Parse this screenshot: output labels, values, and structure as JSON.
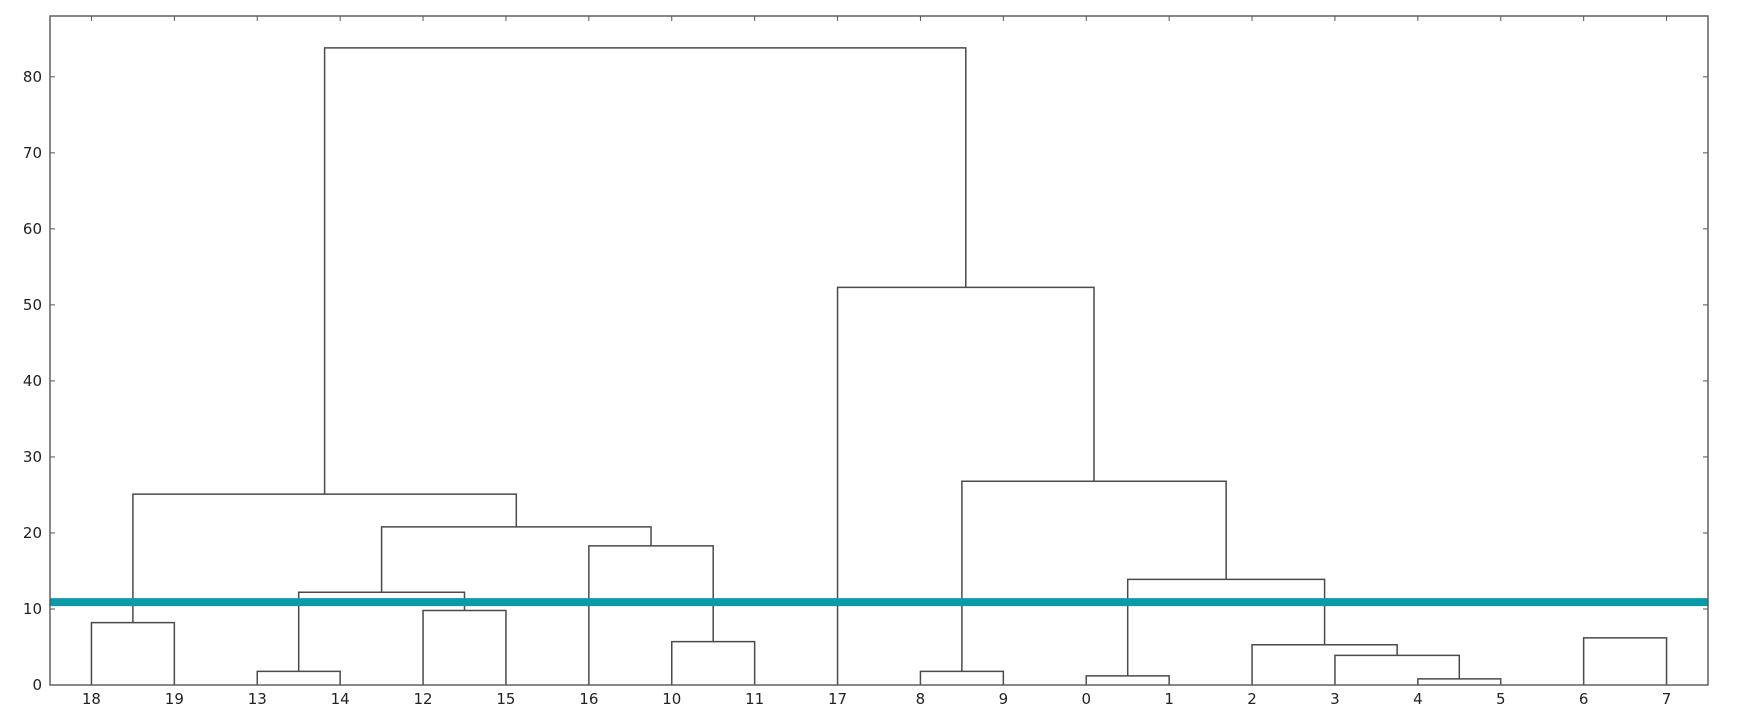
{
  "chart_data": {
    "type": "dendrogram",
    "title": "",
    "xlabel": "",
    "ylabel": "",
    "ylim": [
      0,
      88
    ],
    "yticks": [
      0,
      10,
      20,
      30,
      40,
      50,
      60,
      70,
      80
    ],
    "grid": false,
    "leaf_order": [
      "18",
      "19",
      "13",
      "14",
      "12",
      "15",
      "16",
      "10",
      "11",
      "17",
      "8",
      "9",
      "0",
      "1",
      "2",
      "3",
      "4",
      "5",
      "6",
      "7"
    ],
    "merges": [
      {
        "id": "m1",
        "left": "18",
        "right": "19",
        "height": 8.2
      },
      {
        "id": "m2",
        "left": "13",
        "right": "14",
        "height": 1.8
      },
      {
        "id": "m3",
        "left": "12",
        "right": "15",
        "height": 9.8
      },
      {
        "id": "m4",
        "left": "m2",
        "right": "m3",
        "height": 12.2
      },
      {
        "id": "m5",
        "left": "10",
        "right": "11",
        "height": 5.7
      },
      {
        "id": "m6",
        "left": "16",
        "right": "m5",
        "height": 18.3
      },
      {
        "id": "m7",
        "left": "m4",
        "right": "m6",
        "height": 20.8
      },
      {
        "id": "m8",
        "left": "m1",
        "right": "m7",
        "height": 25.1
      },
      {
        "id": "m9",
        "left": "8",
        "right": "9",
        "height": 1.8
      },
      {
        "id": "m10",
        "left": "0",
        "right": "1",
        "height": 1.2
      },
      {
        "id": "m11",
        "left": "4",
        "right": "5",
        "height": 0.8
      },
      {
        "id": "m12",
        "left": "3",
        "right": "m11",
        "height": 3.9
      },
      {
        "id": "m13",
        "left": "2",
        "right": "m12",
        "height": 5.3
      },
      {
        "id": "m14",
        "left": "m10",
        "right": "m13",
        "height": 13.9
      },
      {
        "id": "m15",
        "left": "m9",
        "right": "m14",
        "height": 26.8
      },
      {
        "id": "m16",
        "left": "6",
        "right": "7",
        "height": 6.2
      },
      {
        "id": "m17",
        "left": "17",
        "right": "m15",
        "height": 52.3
      },
      {
        "id": "m18",
        "left": "m8",
        "right": "m17",
        "height": 83.8
      }
    ],
    "threshold_line": {
      "y": 10.9,
      "color": "#0a9aaa"
    },
    "colors": {
      "link": "#4a4a4a",
      "axis": "#555555",
      "tick_text": "#222222"
    }
  }
}
